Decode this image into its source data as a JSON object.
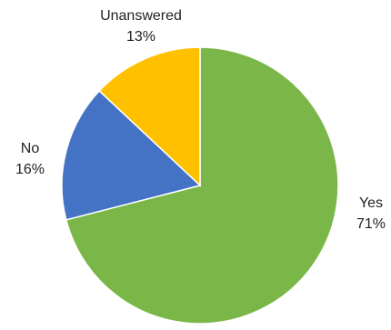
{
  "chart_data": {
    "type": "pie",
    "title": "",
    "start_angle_deg": 0,
    "direction": "clockwise",
    "slices": [
      {
        "label": "Yes",
        "value": 71,
        "display_percent": "71%",
        "color": "#7AB648"
      },
      {
        "label": "No",
        "value": 16,
        "display_percent": "16%",
        "color": "#4472C4"
      },
      {
        "label": "Unanswered",
        "value": 13,
        "display_percent": "13%",
        "color": "#FFC000"
      }
    ],
    "legend": "none",
    "data_labels": "outside"
  }
}
